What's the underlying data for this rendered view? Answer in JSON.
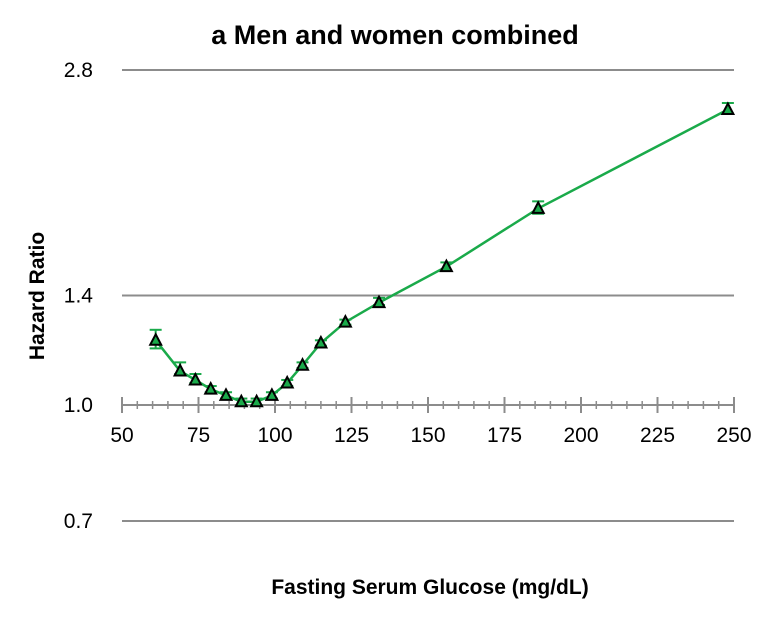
{
  "chart_data": {
    "type": "line",
    "title": "a Men and women combined",
    "xlabel": "Fasting Serum Glucose (mg/dL)",
    "ylabel": "Hazard Ratio",
    "xlim": [
      50,
      250
    ],
    "xticks": [
      "50",
      "75",
      "100",
      "125",
      "150",
      "175",
      "200",
      "225",
      "250"
    ],
    "yscale": "log",
    "yticks": [
      "0.7",
      "1.0",
      "1.4",
      "2.8"
    ],
    "grid": true,
    "marker": "triangle",
    "series_color": "#1aaa4a",
    "series": [
      {
        "x": [
          61,
          69,
          74,
          79,
          84,
          89,
          94,
          99,
          104,
          109,
          115,
          123,
          134,
          156,
          186,
          248
        ],
        "y": [
          1.22,
          1.11,
          1.08,
          1.05,
          1.03,
          1.01,
          1.01,
          1.03,
          1.07,
          1.13,
          1.21,
          1.29,
          1.37,
          1.53,
          1.83,
          2.48
        ],
        "lower": [
          1.19,
          1.1,
          1.07,
          1.04,
          1.02,
          1.0,
          1.0,
          1.02,
          1.06,
          1.12,
          1.2,
          1.28,
          1.36,
          1.51,
          1.8,
          2.45
        ],
        "upper": [
          1.26,
          1.14,
          1.1,
          1.06,
          1.04,
          1.02,
          1.02,
          1.04,
          1.08,
          1.14,
          1.22,
          1.3,
          1.39,
          1.55,
          1.87,
          2.53
        ]
      }
    ]
  }
}
